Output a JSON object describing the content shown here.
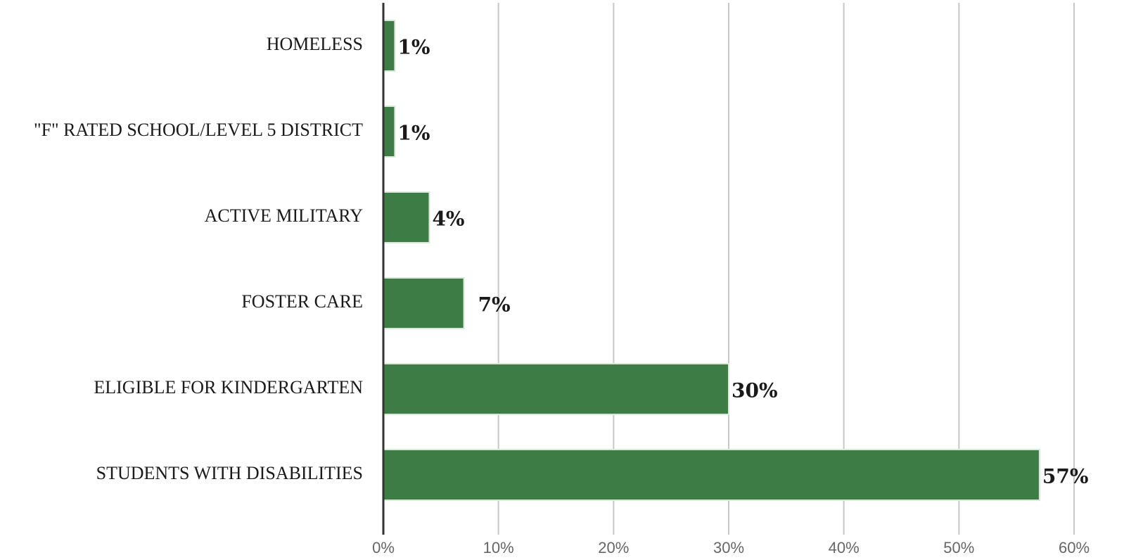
{
  "chart_data": {
    "type": "bar",
    "orientation": "horizontal",
    "title": "",
    "xlabel": "",
    "ylabel": "",
    "categories": [
      "HOMELESS",
      "\"F\" RATED SCHOOL/LEVEL 5 DISTRICT",
      "ACTIVE MILITARY",
      "FOSTER CARE",
      "ELIGIBLE FOR KINDERGARTEN",
      "STUDENTS WITH DISABILITIES"
    ],
    "values": [
      1,
      1,
      4,
      7,
      30,
      57
    ],
    "data_labels": [
      "1%",
      "1%",
      "4%",
      "7%",
      "30%",
      "57%"
    ],
    "xlim": [
      0,
      60
    ],
    "ticks": [
      0,
      10,
      20,
      30,
      40,
      50,
      60
    ],
    "tick_labels": [
      "0%",
      "10%",
      "20%",
      "30%",
      "40%",
      "50%",
      "60%"
    ],
    "grid": true,
    "legend": "none",
    "colors": {
      "bar": "#3d7d45",
      "bar_border": "#d9e8da",
      "grid": "#c8c8c8",
      "axis": "#333333"
    }
  }
}
